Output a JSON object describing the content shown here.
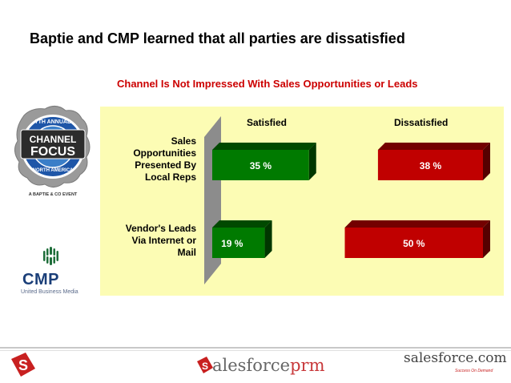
{
  "slide": {
    "title": "Baptie and CMP learned that all parties are dissatisfied"
  },
  "logos": {
    "channel_focus": {
      "top_text": "7TH ANNUAL",
      "main_line1": "CHANNEL",
      "main_line2": "FOCUS",
      "region": "NORTH AMERICA",
      "caption": "A BAPTIE & CO EVENT"
    },
    "cmp": {
      "name": "CMP",
      "subtitle": "United Business Media"
    },
    "salesforce_prm": {
      "part1": "alesforce",
      "part2": "prm"
    },
    "salesforce_com": {
      "text": "salesforce.com",
      "tagline": "Success On Demand"
    }
  },
  "colors": {
    "satisfied": "#007a00",
    "dissatisfied": "#c00000",
    "panel": "#fcfcb4",
    "subtitle": "#cc0000"
  },
  "chart_data": {
    "type": "bar",
    "orientation": "horizontal",
    "title": "Channel Is Not  Impressed With Sales Opportunities or Leads",
    "categories": [
      "Sales Opportunities Presented By Local Reps",
      "Vendor's Leads Via Internet or Mail"
    ],
    "category_lines": [
      [
        "Sales",
        "Opportunities",
        "Presented By",
        "Local Reps"
      ],
      [
        "Vendor's Leads",
        "Via Internet or",
        "Mail"
      ]
    ],
    "series": [
      {
        "name": "Satisfied",
        "values": [
          35,
          19
        ],
        "labels": [
          "35 %",
          "19 %"
        ]
      },
      {
        "name": "Dissatisfied",
        "values": [
          38,
          50
        ],
        "labels": [
          "38 %",
          "50 %"
        ]
      }
    ],
    "unit": "%",
    "grid": false
  }
}
